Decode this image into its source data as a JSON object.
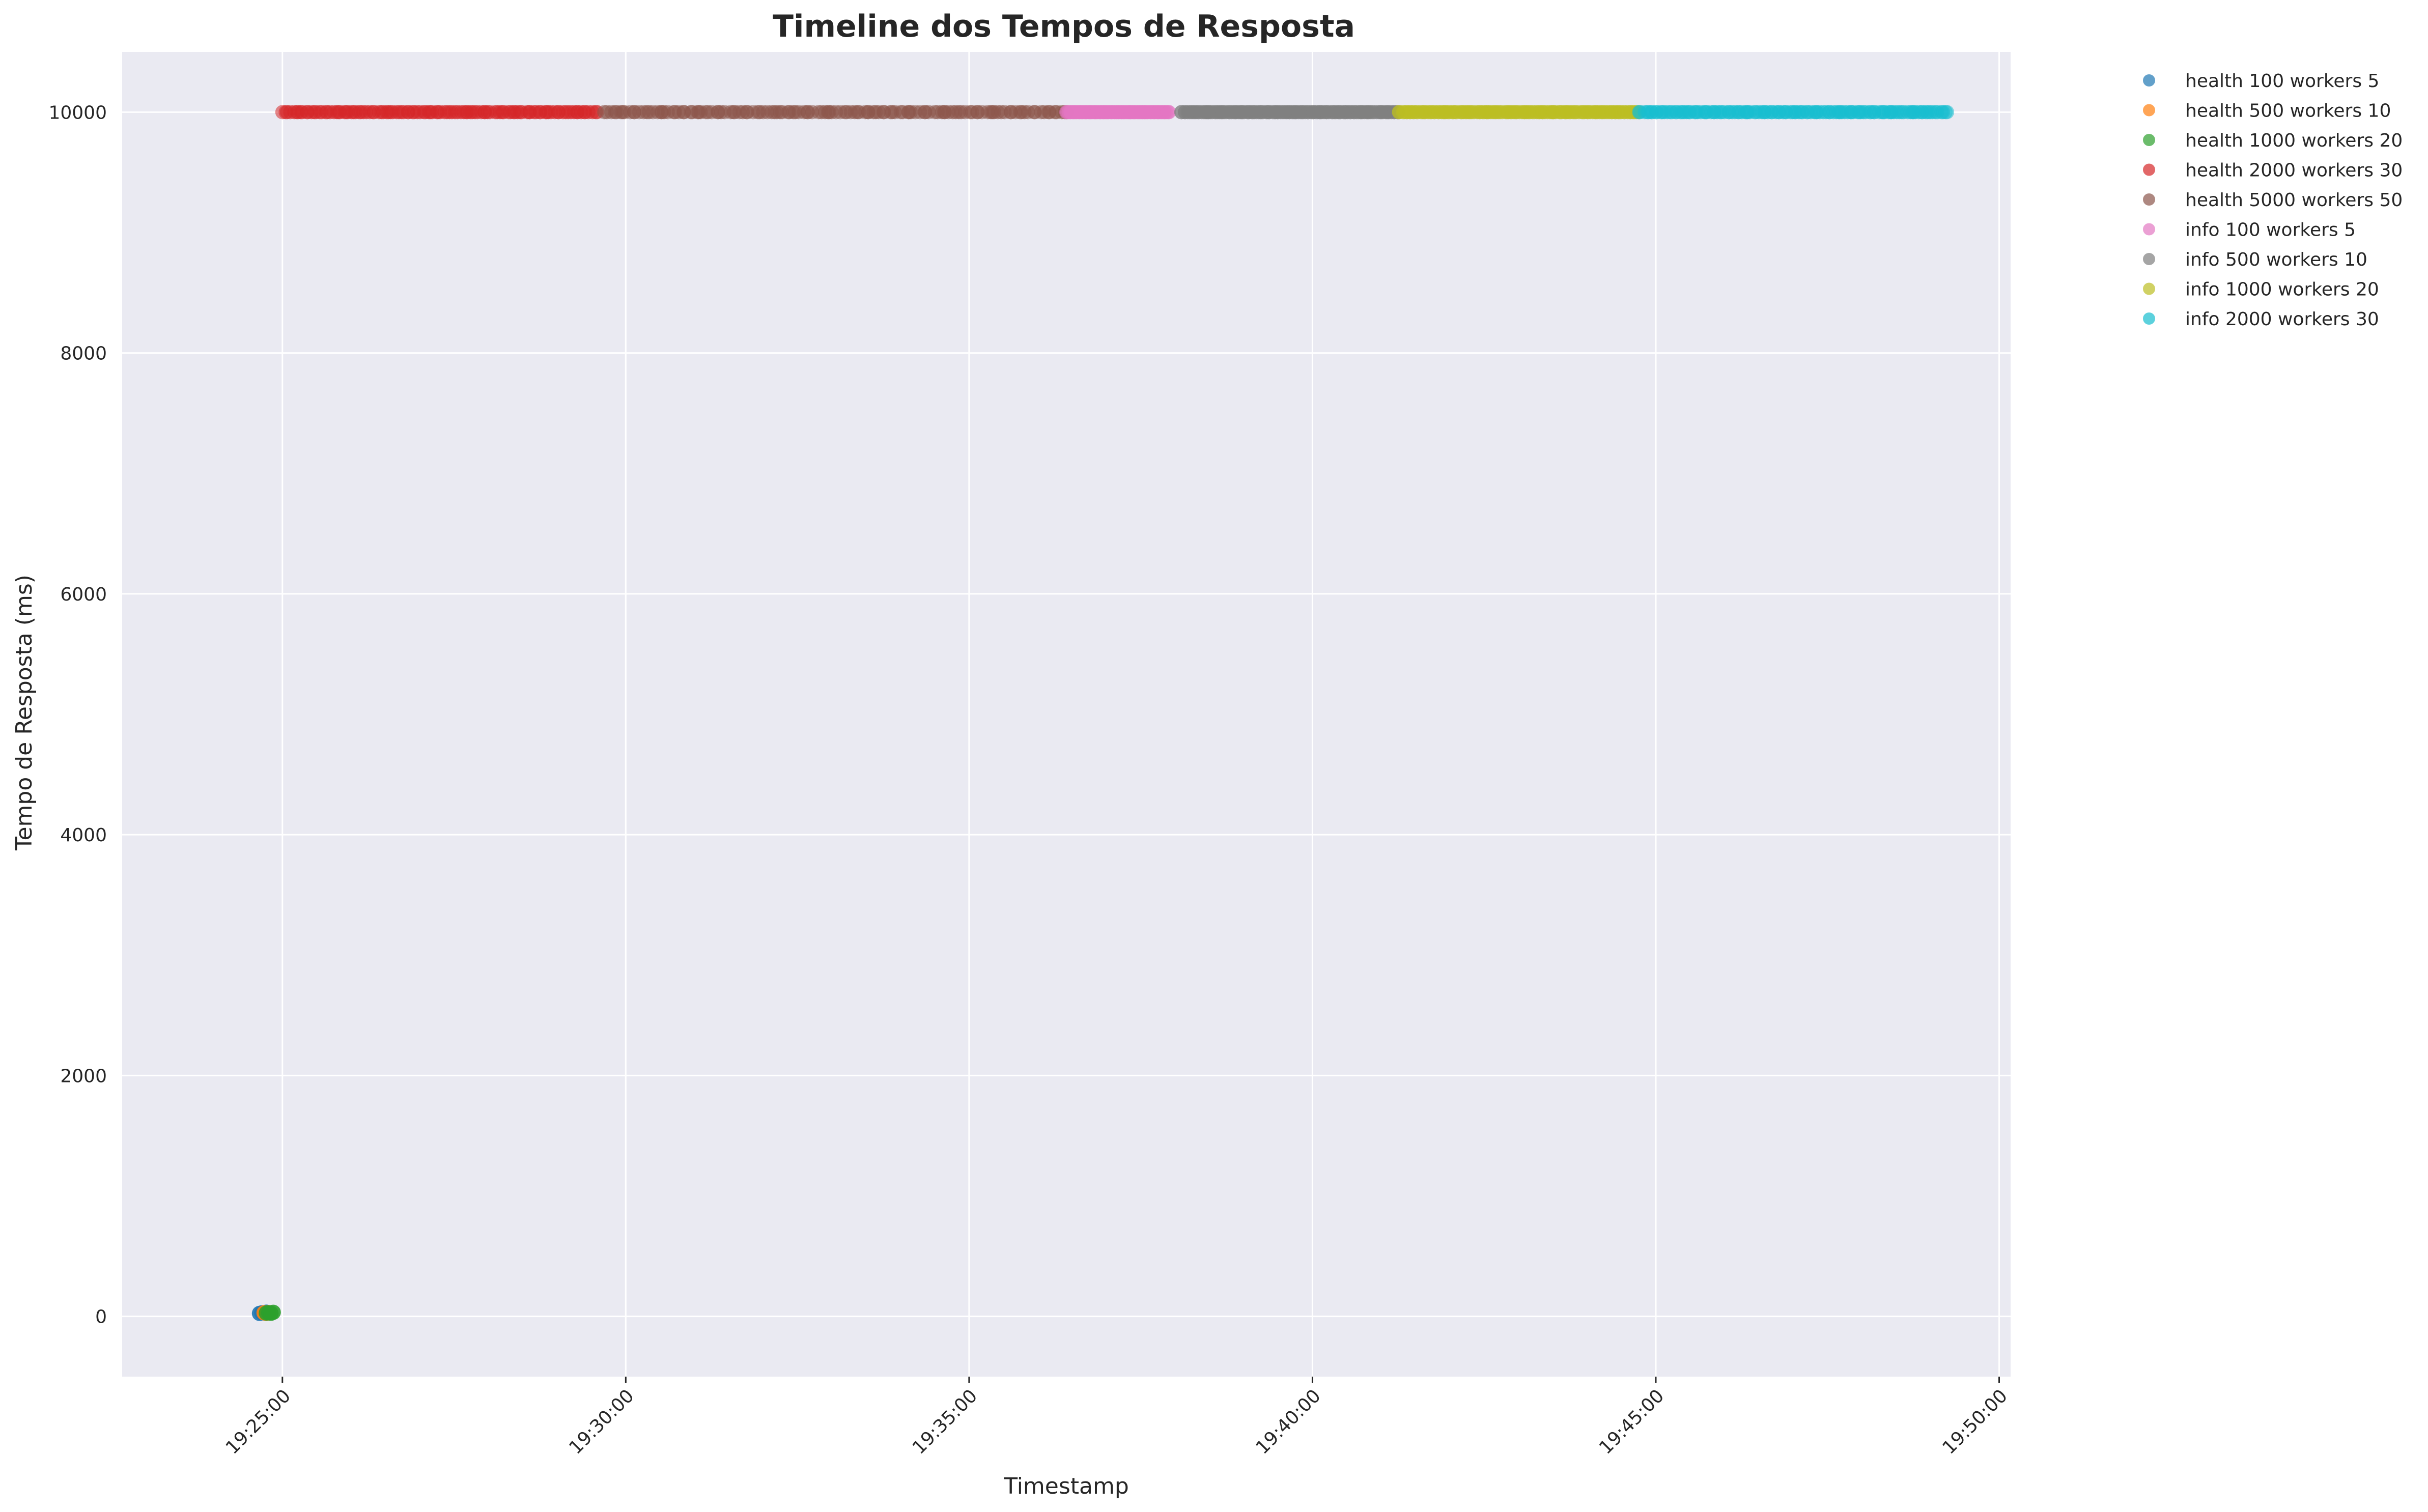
{
  "chart_data": {
    "type": "scatter",
    "title": "Timeline dos Tempos de Resposta",
    "xlabel": "Timestamp",
    "ylabel": "Tempo de Resposta (ms)",
    "x_type": "time",
    "xlim": [
      "19:22:40",
      "19:50:10"
    ],
    "ylim": [
      -500,
      10500
    ],
    "x_ticks": [
      "19:25:00",
      "19:30:00",
      "19:35:00",
      "19:40:00",
      "19:45:00",
      "19:50:00"
    ],
    "y_ticks": [
      0,
      2000,
      4000,
      6000,
      8000,
      10000
    ],
    "grid": true,
    "legend_position": "outside-top-right",
    "background": "#eaeaf2",
    "series": [
      {
        "name": "health 100 workers 5",
        "color": "#1f77b4",
        "points": [
          [
            "19:24:40",
            25
          ],
          [
            "19:24:42",
            30
          ],
          [
            "19:24:44",
            28
          ],
          [
            "19:24:46",
            35
          ]
        ]
      },
      {
        "name": "health 500 workers 10",
        "color": "#ff7f0e",
        "points": [
          [
            "19:24:44",
            30
          ],
          [
            "19:24:46",
            25
          ],
          [
            "19:24:48",
            32
          ]
        ]
      },
      {
        "name": "health 1000 workers 20",
        "color": "#2ca02c",
        "points": [
          [
            "19:24:46",
            28
          ],
          [
            "19:24:48",
            30
          ],
          [
            "19:24:50",
            26
          ],
          [
            "19:24:52",
            34
          ]
        ]
      },
      {
        "name": "health 2000 workers 30",
        "color": "#d62728",
        "range": [
          "19:25:00",
          "19:29:35"
        ],
        "value": 10000,
        "count": 120
      },
      {
        "name": "health 5000 workers 50",
        "color": "#8c564b",
        "range": [
          "19:29:40",
          "19:36:25"
        ],
        "value": 10000,
        "count": 140
      },
      {
        "name": "info 100 workers 5",
        "color": "#e377c2",
        "range": [
          "19:36:25",
          "19:37:55"
        ],
        "value": 10000,
        "count": 90
      },
      {
        "name": "info 500 workers 10",
        "color": "#7f7f7f",
        "range": [
          "19:38:05",
          "19:41:15"
        ],
        "value": 10000,
        "count": 130
      },
      {
        "name": "info 1000 workers 20",
        "color": "#bcbd22",
        "range": [
          "19:41:15",
          "19:44:45"
        ],
        "value": 10000,
        "count": 130
      },
      {
        "name": "info 2000 workers 30",
        "color": "#17becf",
        "range": [
          "19:44:45",
          "19:49:15"
        ],
        "value": 10000,
        "count": 130
      }
    ]
  }
}
